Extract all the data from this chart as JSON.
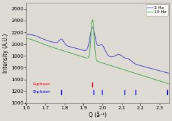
{
  "xlim": [
    1.6,
    2.35
  ],
  "ylim": [
    1000,
    2700
  ],
  "xlabel": "Q (å⁻¹)",
  "ylabel": "Intensity (A.U.)",
  "legend_labels": [
    "2 Hz",
    "10 Hz"
  ],
  "line_colors": [
    "#4444cc",
    "#44aa44"
  ],
  "background_color": "#dedad4",
  "r_phase_markers": [
    1.945
  ],
  "b_phase_markers": [
    1.785,
    1.955,
    1.995,
    2.115,
    2.175,
    2.34
  ],
  "r_phase_label": "R-phase",
  "b_phase_label": "B-phase",
  "marker_color_r": "red",
  "marker_color_b": "blue",
  "yticks": [
    1000,
    1200,
    1400,
    1600,
    1800,
    2000,
    2200,
    2400,
    2600
  ],
  "xticks": [
    1.6,
    1.7,
    1.8,
    1.9,
    2.0,
    2.1,
    2.2,
    2.3
  ]
}
